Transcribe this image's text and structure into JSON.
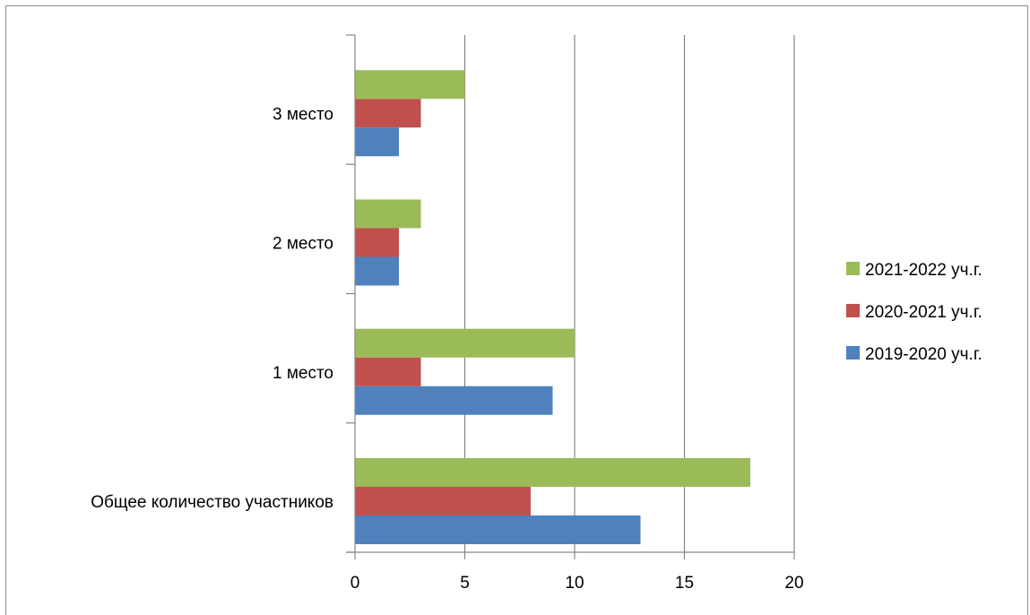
{
  "chart_data": {
    "type": "bar",
    "orientation": "horizontal",
    "categories": [
      "Общее количество участников",
      "1 место",
      "2 место",
      "3 место"
    ],
    "series": [
      {
        "name": "2019-2020 уч.г.",
        "color": "#4f81bd",
        "values": [
          13,
          9,
          2,
          2
        ]
      },
      {
        "name": "2020-2021 уч.г.",
        "color": "#c0504d",
        "values": [
          8,
          3,
          2,
          3
        ]
      },
      {
        "name": "2021-2022 уч.г.",
        "color": "#9bbb59",
        "values": [
          18,
          10,
          3,
          5
        ]
      }
    ],
    "xlim": [
      0,
      20
    ],
    "xticks": [
      0,
      5,
      10,
      15,
      20
    ],
    "grid": true,
    "legend": "right",
    "legend_order": [
      "2021-2022 уч.г.",
      "2020-2021 уч.г.",
      "2019-2020 уч.г."
    ]
  }
}
